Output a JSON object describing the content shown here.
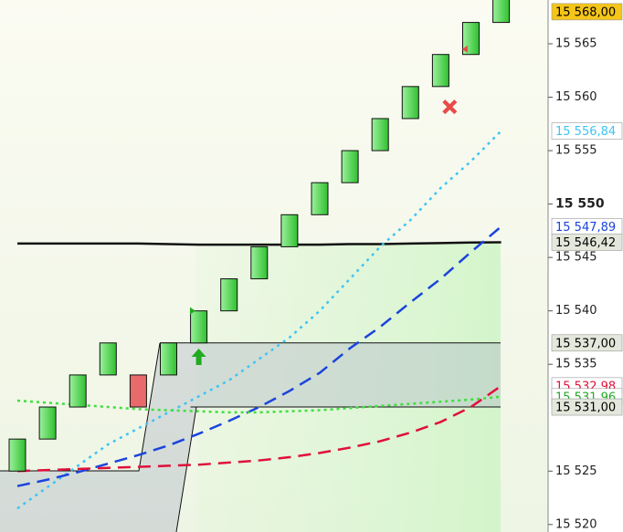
{
  "chart_data": {
    "type": "renko",
    "bricks": [
      {
        "open": 15525,
        "close": 15528
      },
      {
        "open": 15528,
        "close": 15531
      },
      {
        "open": 15531,
        "close": 15534
      },
      {
        "open": 15534,
        "close": 15537
      },
      {
        "open": 15534,
        "close": 15531
      },
      {
        "open": 15534,
        "close": 15537
      },
      {
        "open": 15537,
        "close": 15540
      },
      {
        "open": 15540,
        "close": 15543
      },
      {
        "open": 15543,
        "close": 15546
      },
      {
        "open": 15546,
        "close": 15549
      },
      {
        "open": 15549,
        "close": 15552
      },
      {
        "open": 15552,
        "close": 15555
      },
      {
        "open": 15555,
        "close": 15558
      },
      {
        "open": 15558,
        "close": 15561
      },
      {
        "open": 15561,
        "close": 15564
      },
      {
        "open": 15564,
        "close": 15567
      },
      {
        "open": 15567,
        "close": 15570
      }
    ],
    "up_color": "#4cd44c",
    "down_color": "#e86a6a",
    "series": [
      {
        "color": "#111111",
        "dash": "none",
        "values": [
          15546.3,
          15546.3,
          15546.3,
          15546.3,
          15546.3,
          15546.25,
          15546.2,
          15546.2,
          15546.2,
          15546.2,
          15546.2,
          15546.25,
          15546.25,
          15546.3,
          15546.35,
          15546.4,
          15546.42
        ]
      },
      {
        "color": "#3ec4f4",
        "dash": "3 5",
        "values": [
          15521.5,
          15523.5,
          15525.5,
          15527.5,
          15529,
          15530.5,
          15532,
          15533.5,
          15535.5,
          15537.5,
          15540,
          15543,
          15546,
          15548.5,
          15551.5,
          15554,
          15556.84
        ]
      },
      {
        "color": "#1a44dd",
        "dash": "14 8",
        "values": [
          15523.6,
          15524.2,
          15524.9,
          15525.7,
          15526.5,
          15527.4,
          15528.5,
          15529.7,
          15531,
          15532.5,
          15534.2,
          15536.5,
          15538.5,
          15540.8,
          15543,
          15545.5,
          15547.89
        ]
      },
      {
        "color": "#e0103a",
        "dash": "14 8",
        "values": [
          15525,
          15525.1,
          15525.2,
          15525.3,
          15525.4,
          15525.5,
          15525.6,
          15525.8,
          15526,
          15526.3,
          15526.7,
          15527.2,
          15527.8,
          15528.6,
          15529.6,
          15531,
          15532.98
        ]
      },
      {
        "color": "#3ee03e",
        "dash": "3 4",
        "values": [
          15531.6,
          15531.4,
          15531.2,
          15531,
          15530.8,
          15530.7,
          15530.6,
          15530.5,
          15530.5,
          15530.6,
          15530.7,
          15530.9,
          15531.1,
          15531.3,
          15531.5,
          15531.7,
          15531.96
        ]
      }
    ],
    "levels": [
      {
        "value": 15537,
        "from": 5
      },
      {
        "value": 15531,
        "from": 6
      }
    ],
    "markers": [
      {
        "shape": "triangle-right",
        "color": "#22aa22",
        "index": 5.8,
        "value": 15540
      },
      {
        "shape": "arrow-up",
        "color": "#22aa22",
        "index": 6,
        "value": 15535.7
      },
      {
        "shape": "cross",
        "color": "#e84a4a",
        "index": 14.3,
        "value": 15559.1
      },
      {
        "shape": "triangle-left",
        "color": "#e84a4a",
        "index": 14.8,
        "value": 15564.5
      }
    ],
    "ylim": [
      15519.3,
      15569.1
    ],
    "yticks": [
      {
        "value": 15520,
        "label": "15 520"
      },
      {
        "value": 15525,
        "label": "15 525"
      },
      {
        "value": 15535,
        "label": "15 535"
      },
      {
        "value": 15540,
        "label": "15 540"
      },
      {
        "value": 15545,
        "label": "15 545"
      },
      {
        "value": 15550,
        "label": "15 550"
      },
      {
        "value": 15555,
        "label": "15 555"
      },
      {
        "value": 15560,
        "label": "15 560"
      },
      {
        "value": 15565,
        "label": "15 565"
      }
    ],
    "bold_tick": 15550,
    "price_labels": [
      {
        "value": 15568,
        "label": "15 568,00",
        "color": "#000000",
        "bg": "#f5c518"
      },
      {
        "value": 15556.84,
        "label": "15 556,84",
        "color": "#3ec4f4",
        "bg": "#ffffff"
      },
      {
        "value": 15547.89,
        "label": "15 547,89",
        "color": "#1a44dd",
        "bg": "#ffffff"
      },
      {
        "value": 15546.42,
        "label": "15 546,42",
        "color": "#000000",
        "bg": "#e4e8dc"
      },
      {
        "value": 15537,
        "label": "15 537,00",
        "color": "#000000",
        "bg": "#e4e8dc"
      },
      {
        "value": 15532.98,
        "label": "15 532,98",
        "color": "#e0103a",
        "bg": "#ffffff"
      },
      {
        "value": 15531.96,
        "label": "15 531,96",
        "color": "#22aa22",
        "bg": "#ffffff"
      },
      {
        "value": 15531,
        "label": "15 531,00",
        "color": "#000000",
        "bg": "#e4e8dc"
      }
    ]
  }
}
